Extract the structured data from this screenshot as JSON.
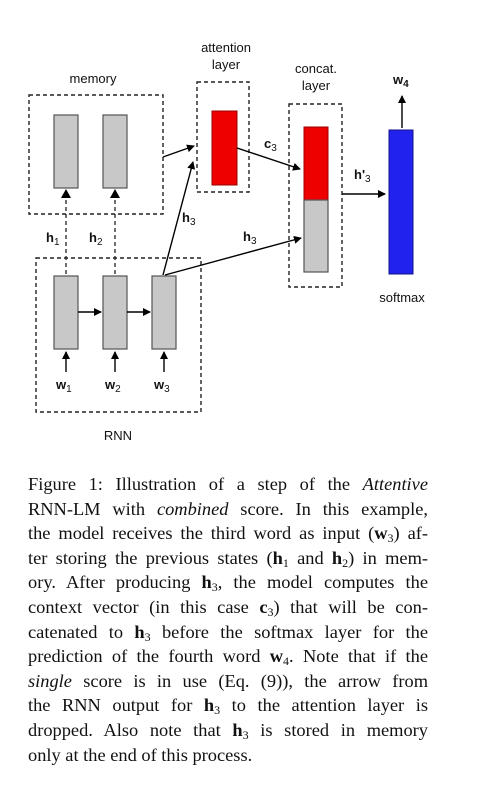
{
  "figure": {
    "labels": {
      "memory": "memory",
      "attention_1": "attention",
      "attention_2": "layer",
      "concat_1": "concat.",
      "concat_2": "layer",
      "rnn": "RNN",
      "softmax": "softmax",
      "h1": "h",
      "h1_sub": "1",
      "h2": "h",
      "h2_sub": "2",
      "h3_diag": "h",
      "h3_diag_sub": "3",
      "h3_right": "h",
      "h3_right_sub": "3",
      "c3": "c",
      "c3_sub": "3",
      "hprime3": "h'",
      "hprime3_sub": "3",
      "w1": "w",
      "w1_sub": "1",
      "w2": "w",
      "w2_sub": "2",
      "w3": "w",
      "w3_sub": "3",
      "w4": "w",
      "w4_sub": "4"
    },
    "colors": {
      "attention": "#ee0000",
      "concat_top": "#ee0000",
      "concat_bottom": "#c8c8c8",
      "softmax": "#2222ee",
      "gray": "#c8c8c8"
    }
  },
  "caption": {
    "l1a": "Figure 1: Illustration of a step of the ",
    "l1b": "Attentive",
    "l2a": "RNN-LM with ",
    "l2b": "combined",
    "l2c": " score. In this example,",
    "l3a": "the model receives the third word as input (",
    "l3b": "w",
    "l3c": "3",
    "l3d": ") af-",
    "l4a": "ter storing the previous states (",
    "l4b": "h",
    "l4c": "1",
    "l4d": " and ",
    "l4e": "h",
    "l4f": "2",
    "l4g": ") in mem-",
    "l5a": "ory. After producing ",
    "l5b": "h",
    "l5c": "3",
    "l5d": ", the model computes the",
    "l6a": "context vector (in this case ",
    "l6b": "c",
    "l6c": "3",
    "l6d": ") that will be con-",
    "l7a": "catenated to ",
    "l7b": "h",
    "l7c": "3",
    "l7d": " before the softmax layer for the",
    "l8a": "prediction of the fourth word ",
    "l8b": "w",
    "l8c": "4",
    "l8d": ". Note that if the",
    "l9a": "single",
    "l9b": " score is in use (Eq. (9)), the arrow from",
    "l10a": "the RNN output for ",
    "l10b": "h",
    "l10c": "3",
    "l10d": " to the attention layer is",
    "l11a": "dropped. Also note that ",
    "l11b": "h",
    "l11c": "3",
    "l11d": " is stored in memory",
    "l12a": "only at the end of this process."
  }
}
